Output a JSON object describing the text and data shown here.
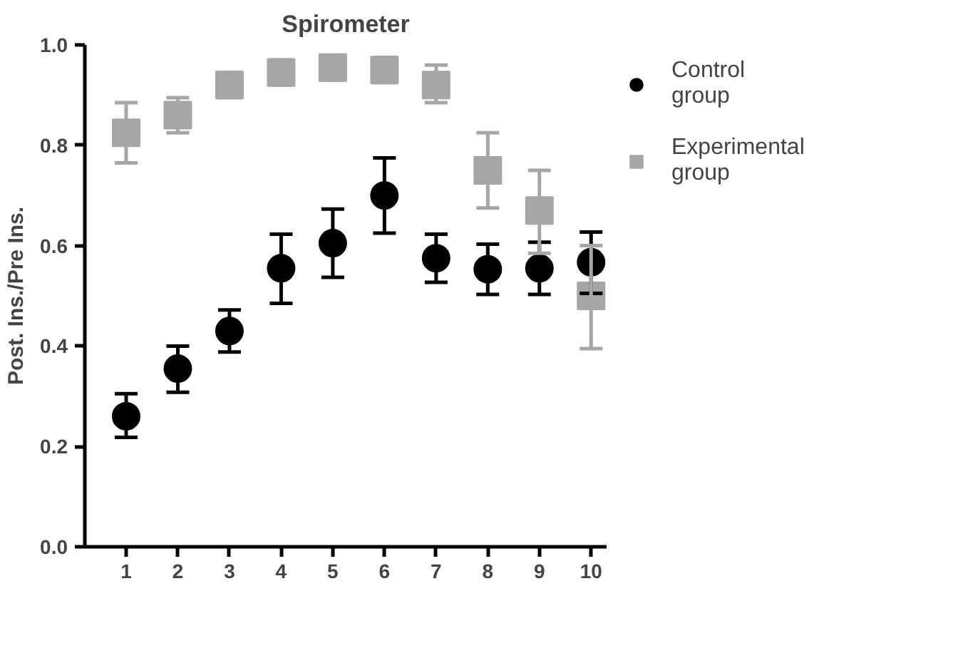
{
  "chart_data": {
    "type": "scatter",
    "title": "Spirometer",
    "ylabel": "Post. Ins./Pre Ins.",
    "x": [
      1,
      2,
      3,
      4,
      5,
      6,
      7,
      8,
      9,
      10
    ],
    "xlim": [
      0.2,
      10.3
    ],
    "xticks": [
      1,
      2,
      3,
      4,
      5,
      6,
      7,
      8,
      9,
      10
    ],
    "ylim": [
      0,
      1
    ],
    "yticks": [
      {
        "value": 0,
        "label": "0.0"
      },
      0.2,
      0.4,
      0.6,
      0.8,
      {
        "value": 1,
        "label": "1.0"
      }
    ],
    "grid": false,
    "legend": "right",
    "series": [
      {
        "name": "Control group",
        "color": "#000000",
        "marker": "circle",
        "values": [
          0.26,
          0.355,
          0.43,
          0.555,
          0.605,
          0.7,
          0.575,
          0.553,
          0.555,
          0.567
        ],
        "errors": [
          [
            0.218,
            0.305
          ],
          [
            0.308,
            0.4
          ],
          [
            0.388,
            0.472
          ],
          [
            0.485,
            0.623
          ],
          [
            0.537,
            0.673
          ],
          [
            0.625,
            0.775
          ],
          [
            0.527,
            0.623
          ],
          [
            0.503,
            0.603
          ],
          [
            0.503,
            0.607
          ],
          [
            0.505,
            0.627
          ]
        ]
      },
      {
        "name": "Experimental group",
        "color": "#a6a6a6",
        "marker": "square",
        "values": [
          0.825,
          0.86,
          0.92,
          0.945,
          0.955,
          0.95,
          0.92,
          0.75,
          0.67,
          0.5
        ],
        "errors": [
          [
            0.765,
            0.885
          ],
          [
            0.825,
            0.895
          ],
          [
            0.895,
            0.945
          ],
          [
            0.92,
            0.97
          ],
          [
            0.93,
            0.975
          ],
          [
            0.925,
            0.975
          ],
          [
            0.885,
            0.96
          ],
          [
            0.675,
            0.825
          ],
          [
            0.585,
            0.75
          ],
          [
            0.395,
            0.6
          ]
        ]
      }
    ]
  }
}
